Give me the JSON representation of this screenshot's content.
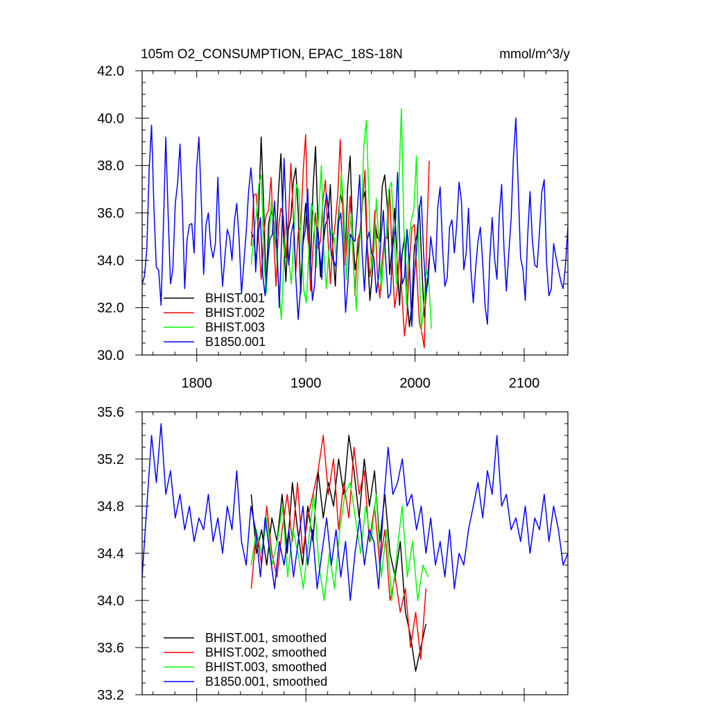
{
  "figure": {
    "title_left": "105m O2_CONSUMPTION, EPAC_18S-18N",
    "title_right": "mmol/m^3/y"
  },
  "chart_data": [
    {
      "type": "line",
      "panel": "top",
      "xlim": [
        1750,
        2140
      ],
      "ylim": [
        30.0,
        42.0
      ],
      "y_ticks": [
        "30.0",
        "32.0",
        "34.0",
        "36.0",
        "38.0",
        "40.0",
        "42.0"
      ],
      "x_ticks": [
        "1800",
        "1900",
        "2000",
        "2100"
      ],
      "legend_position": "bottom-left",
      "grid": false,
      "series": [
        {
          "name": "BHIST.001",
          "color": "#000000",
          "x_start": 1850,
          "x_end": 2013,
          "pattern": "annual",
          "values_sampled": [
            35.2,
            33.9,
            39.2,
            32.8,
            36.1,
            34.5,
            38.5,
            33.1,
            35.8,
            37.9,
            32.6,
            36.4,
            34.0,
            38.8,
            33.3,
            35.5,
            37.2,
            32.9,
            36.8,
            34.2,
            38.4,
            33.6,
            35.1,
            36.9,
            32.3,
            35.7,
            34.8,
            37.6,
            33.4,
            36.2,
            32.1,
            35.0,
            31.2,
            34.6,
            36.3,
            31.6,
            34.1
          ]
        },
        {
          "name": "BHIST.002",
          "color": "#ff0000",
          "x_start": 1850,
          "x_end": 2013,
          "pattern": "annual",
          "values_sampled": [
            34.6,
            36.8,
            33.2,
            35.9,
            37.5,
            32.9,
            36.2,
            34.1,
            38.1,
            33.5,
            35.4,
            39.3,
            32.7,
            36.0,
            34.8,
            37.4,
            33.0,
            35.6,
            39.1,
            33.8,
            36.7,
            32.5,
            35.2,
            37.8,
            33.3,
            36.1,
            32.4,
            35.0,
            37.0,
            32.0,
            34.4,
            30.8,
            33.9,
            35.5,
            31.4,
            30.3,
            38.2
          ]
        },
        {
          "name": "BHIST.003",
          "color": "#00ff00",
          "x_start": 1850,
          "x_end": 2015,
          "pattern": "annual",
          "values_sampled": [
            33.8,
            35.9,
            37.6,
            32.6,
            36.5,
            34.3,
            31.5,
            35.8,
            33.0,
            37.2,
            34.6,
            32.2,
            36.4,
            33.7,
            38.0,
            32.8,
            35.3,
            34.1,
            37.7,
            33.2,
            36.0,
            31.9,
            35.6,
            39.9,
            33.5,
            36.6,
            32.7,
            35.1,
            37.3,
            33.0,
            40.4,
            32.1,
            35.7,
            38.4,
            31.0,
            33.6,
            31.1
          ]
        },
        {
          "name": "B1850.001",
          "color": "#0000ff",
          "x_start": 1750,
          "x_end": 2140,
          "pattern": "annual",
          "values_sampled": [
            33.0,
            34.5,
            39.7,
            33.7,
            32.1,
            39.2,
            33.0,
            36.4,
            38.9,
            32.8,
            35.5,
            34.3,
            39.2,
            33.4,
            36.0,
            34.1,
            37.5,
            32.9,
            35.3,
            34.0,
            36.4,
            32.6,
            35.2,
            37.9,
            33.5,
            35.8,
            32.5,
            34.9,
            36.5,
            32.0,
            38.3,
            33.8,
            35.6,
            31.5,
            34.7,
            37.0,
            32.3,
            35.4,
            33.2,
            36.8,
            34.2,
            33.7,
            36.0,
            31.8,
            35.1,
            34.8,
            37.6,
            32.7,
            35.2,
            34.1,
            33.3,
            36.1,
            32.4,
            34.6,
            37.7,
            33.0,
            35.3,
            31.2,
            34.4,
            36.7,
            32.6,
            35.0,
            33.5,
            37.1,
            32.9,
            35.4,
            34.3,
            37.3,
            33.6,
            36.2,
            32.2,
            34.8,
            33.9,
            31.3,
            35.8,
            33.2,
            37.2,
            32.7,
            35.7,
            40.0,
            34.1,
            32.3,
            36.9,
            33.8,
            35.2,
            37.4,
            32.5,
            34.7,
            33.6,
            32.8,
            35.4
          ]
        }
      ]
    },
    {
      "type": "line",
      "panel": "bottom",
      "xlim": [
        1750,
        2140
      ],
      "ylim": [
        33.2,
        35.6
      ],
      "y_ticks": [
        "33.2",
        "33.6",
        "34.0",
        "34.4",
        "34.8",
        "35.2",
        "35.6"
      ],
      "legend_position": "bottom-left",
      "grid": false,
      "series": [
        {
          "name": "BHIST.001, smoothed",
          "color": "#000000",
          "x_start": 1850,
          "x_end": 2010,
          "values_sampled": [
            34.9,
            34.4,
            34.6,
            34.3,
            34.7,
            34.5,
            34.9,
            34.4,
            35.0,
            34.6,
            34.3,
            34.8,
            34.5,
            35.1,
            34.7,
            35.0,
            34.8,
            35.2,
            34.9,
            35.4,
            35.1,
            34.7,
            35.2,
            34.8,
            35.1,
            34.5,
            34.9,
            34.4,
            34.2,
            34.5,
            33.9,
            33.7,
            33.4,
            33.6,
            33.8
          ]
        },
        {
          "name": "BHIST.002, smoothed",
          "color": "#ff0000",
          "x_start": 1850,
          "x_end": 2010,
          "values_sampled": [
            34.1,
            34.6,
            34.3,
            34.8,
            34.4,
            34.2,
            34.6,
            34.9,
            34.5,
            35.0,
            34.4,
            34.7,
            34.9,
            35.1,
            35.4,
            34.9,
            35.2,
            34.6,
            35.0,
            34.7,
            35.3,
            34.9,
            35.1,
            34.5,
            34.8,
            34.3,
            34.6,
            34.0,
            34.2,
            33.9,
            34.1,
            33.6,
            33.9,
            33.5,
            34.1
          ]
        },
        {
          "name": "BHIST.003, smoothed",
          "color": "#00ff00",
          "x_start": 1850,
          "x_end": 2012,
          "values_sampled": [
            34.3,
            34.6,
            34.4,
            34.7,
            34.3,
            34.5,
            34.8,
            34.2,
            34.6,
            34.4,
            34.1,
            34.5,
            34.9,
            34.3,
            34.0,
            34.4,
            34.1,
            34.6,
            34.9,
            35.0,
            34.7,
            34.4,
            34.8,
            34.5,
            34.9,
            34.2,
            34.6,
            34.0,
            34.4,
            34.8,
            34.2,
            34.5,
            34.0,
            34.3,
            34.2
          ]
        },
        {
          "name": "B1850.001, smoothed",
          "color": "#0000ff",
          "x_start": 1750,
          "x_end": 2140,
          "values_sampled": [
            34.2,
            34.8,
            35.4,
            35.0,
            35.5,
            34.9,
            35.1,
            34.7,
            34.9,
            34.6,
            34.8,
            34.5,
            34.7,
            34.6,
            34.9,
            34.5,
            34.7,
            34.4,
            34.8,
            34.6,
            35.1,
            34.5,
            34.3,
            34.8,
            34.6,
            34.2,
            34.7,
            34.4,
            34.1,
            34.5,
            34.3,
            34.6,
            34.2,
            34.5,
            34.8,
            34.3,
            34.6,
            34.1,
            34.4,
            34.7,
            34.3,
            34.6,
            34.2,
            34.5,
            34.0,
            34.4,
            34.7,
            34.3,
            34.6,
            34.5,
            34.1,
            34.8,
            35.3,
            34.9,
            35.0,
            35.2,
            34.8,
            34.9,
            34.6,
            34.8,
            34.4,
            34.7,
            34.3,
            34.5,
            34.2,
            34.6,
            34.1,
            34.4,
            34.3,
            34.6,
            34.8,
            35.0,
            34.7,
            35.1,
            34.9,
            35.4,
            34.8,
            34.9,
            34.6,
            34.7,
            34.5,
            34.8,
            34.4,
            34.7,
            34.6,
            34.9,
            34.5,
            34.8,
            34.6,
            34.3,
            34.4
          ]
        }
      ]
    }
  ]
}
